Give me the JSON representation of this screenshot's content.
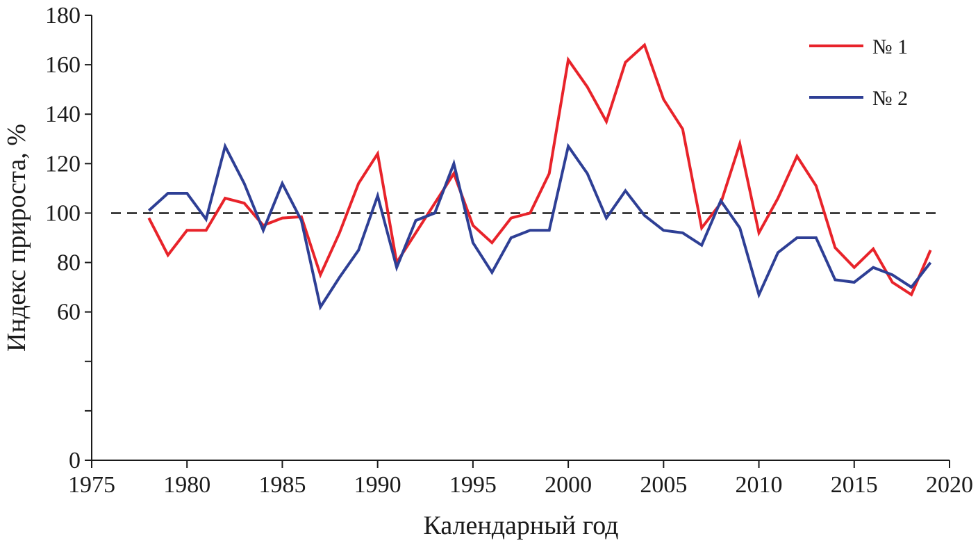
{
  "chart_data": {
    "type": "line",
    "xlabel": "Календарный год",
    "ylabel": "Индекс прироста, %",
    "xlim": [
      1975,
      2020
    ],
    "ylim": [
      0,
      180
    ],
    "xticks": [
      1975,
      1980,
      1985,
      1990,
      1995,
      2000,
      2005,
      2010,
      2015,
      2020
    ],
    "yticks": [
      0,
      20,
      40,
      60,
      80,
      100,
      120,
      140,
      160,
      180
    ],
    "ytick_labels": [
      "0",
      "",
      "",
      "60",
      "80",
      "100",
      "120",
      "140",
      "160",
      "180"
    ],
    "reference_line": {
      "y": 100,
      "style": "dashed",
      "color": "#1a1a1a"
    },
    "grid": false,
    "legend_position": "top-right",
    "x": [
      1978,
      1979,
      1980,
      1981,
      1982,
      1983,
      1984,
      1985,
      1986,
      1987,
      1988,
      1989,
      1990,
      1991,
      1992,
      1993,
      1994,
      1995,
      1996,
      1997,
      1998,
      1999,
      2000,
      2001,
      2002,
      2003,
      2004,
      2005,
      2006,
      2007,
      2008,
      2009,
      2010,
      2011,
      2012,
      2013,
      2014,
      2015,
      2016,
      2017,
      2018,
      2019
    ],
    "series": [
      {
        "name": "№ 1",
        "color": "#e8232a",
        "values": [
          98,
          83,
          93,
          93,
          106,
          104,
          95,
          98,
          98.5,
          75,
          92,
          112,
          124,
          80,
          92,
          104,
          116,
          95,
          88,
          98,
          100,
          116,
          162,
          151,
          137,
          161,
          168,
          146,
          134,
          94,
          104,
          128,
          92,
          106,
          123,
          111,
          86,
          78,
          85.5,
          72,
          67,
          85
        ]
      },
      {
        "name": "№ 2",
        "color": "#2e3f95",
        "values": [
          101,
          108,
          108,
          97.5,
          127,
          112,
          93,
          112,
          97,
          62,
          74,
          85,
          107,
          78,
          97,
          100,
          120,
          88,
          76,
          90,
          93,
          93,
          127,
          116,
          98,
          109,
          99,
          93,
          92,
          87,
          105,
          94,
          67,
          84,
          90,
          90,
          73,
          72,
          78,
          75,
          70,
          80
        ]
      }
    ]
  }
}
